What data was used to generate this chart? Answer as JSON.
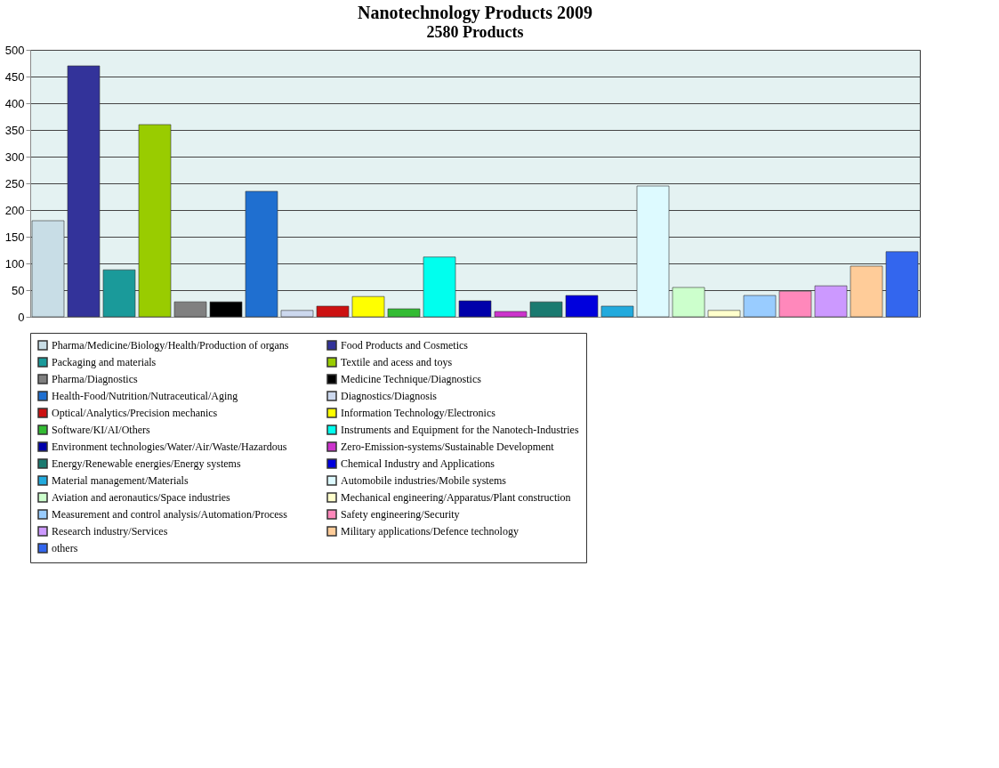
{
  "chart_data": {
    "type": "bar",
    "title": "Nanotechnology Products 2009",
    "subtitle": "2580 Products",
    "categories": [
      null,
      null,
      null,
      null,
      null,
      null,
      null,
      null,
      null,
      null,
      null,
      null,
      null,
      null,
      null,
      null,
      null,
      null,
      null,
      null,
      null,
      null,
      null,
      null,
      null
    ],
    "series": [
      {
        "name": "Pharma/Medicine/Biology/Health/Production of organs",
        "color": "#c8dde6",
        "values": [
          180,
          null,
          null,
          null,
          null,
          null,
          null,
          null,
          null,
          null,
          null,
          null,
          null,
          null,
          null,
          null,
          null,
          null,
          null,
          null,
          null,
          null,
          null,
          null,
          null
        ]
      },
      {
        "name": "Food Products and Cosmetics",
        "color": "#33339a",
        "values": [
          null,
          470,
          null,
          null,
          null,
          null,
          null,
          null,
          null,
          null,
          null,
          null,
          null,
          null,
          null,
          null,
          null,
          null,
          null,
          null,
          null,
          null,
          null,
          null,
          null
        ]
      },
      {
        "name": "Packaging and materials",
        "color": "#1a9a9a",
        "values": [
          null,
          null,
          88,
          null,
          null,
          null,
          null,
          null,
          null,
          null,
          null,
          null,
          null,
          null,
          null,
          null,
          null,
          null,
          null,
          null,
          null,
          null,
          null,
          null,
          null
        ]
      },
      {
        "name": "Textile and acess and toys",
        "color": "#99cc00",
        "values": [
          null,
          null,
          null,
          360,
          null,
          null,
          null,
          null,
          null,
          null,
          null,
          null,
          null,
          null,
          null,
          null,
          null,
          null,
          null,
          null,
          null,
          null,
          null,
          null,
          null
        ]
      },
      {
        "name": "Pharma/Diagnostics",
        "color": "#808080",
        "values": [
          null,
          null,
          null,
          null,
          28,
          null,
          null,
          null,
          null,
          null,
          null,
          null,
          null,
          null,
          null,
          null,
          null,
          null,
          null,
          null,
          null,
          null,
          null,
          null,
          null
        ]
      },
      {
        "name": "Medicine Technique/Diagnostics",
        "color": "#000000",
        "values": [
          null,
          null,
          null,
          null,
          null,
          28,
          null,
          null,
          null,
          null,
          null,
          null,
          null,
          null,
          null,
          null,
          null,
          null,
          null,
          null,
          null,
          null,
          null,
          null,
          null
        ]
      },
      {
        "name": "Health-Food/Nutrition/Nutraceutical/Aging",
        "color": "#1f6fd0",
        "values": [
          null,
          null,
          null,
          null,
          null,
          null,
          235,
          null,
          null,
          null,
          null,
          null,
          null,
          null,
          null,
          null,
          null,
          null,
          null,
          null,
          null,
          null,
          null,
          null,
          null
        ]
      },
      {
        "name": "Diagnostics/Diagnosis",
        "color": "#ccd8ee",
        "values": [
          null,
          null,
          null,
          null,
          null,
          null,
          null,
          12,
          null,
          null,
          null,
          null,
          null,
          null,
          null,
          null,
          null,
          null,
          null,
          null,
          null,
          null,
          null,
          null,
          null
        ]
      },
      {
        "name": "Optical/Analytics/Precision mechanics",
        "color": "#cc1111",
        "values": [
          null,
          null,
          null,
          null,
          null,
          null,
          null,
          null,
          20,
          null,
          null,
          null,
          null,
          null,
          null,
          null,
          null,
          null,
          null,
          null,
          null,
          null,
          null,
          null,
          null
        ]
      },
      {
        "name": "Information Technology/Electronics",
        "color": "#ffff00",
        "values": [
          null,
          null,
          null,
          null,
          null,
          null,
          null,
          null,
          null,
          38,
          null,
          null,
          null,
          null,
          null,
          null,
          null,
          null,
          null,
          null,
          null,
          null,
          null,
          null,
          null
        ]
      },
      {
        "name": "Software/KI/AI/Others",
        "color": "#33bb33",
        "values": [
          null,
          null,
          null,
          null,
          null,
          null,
          null,
          null,
          null,
          null,
          15,
          null,
          null,
          null,
          null,
          null,
          null,
          null,
          null,
          null,
          null,
          null,
          null,
          null,
          null
        ]
      },
      {
        "name": "Instruments and Equipment for the Nanotech-Industries",
        "color": "#00ffee",
        "values": [
          null,
          null,
          null,
          null,
          null,
          null,
          null,
          null,
          null,
          null,
          null,
          112,
          null,
          null,
          null,
          null,
          null,
          null,
          null,
          null,
          null,
          null,
          null,
          null,
          null
        ]
      },
      {
        "name": "Environment technologies/Water/Air/Waste/Hazardous",
        "color": "#0000aa",
        "values": [
          null,
          null,
          null,
          null,
          null,
          null,
          null,
          null,
          null,
          null,
          null,
          null,
          30,
          null,
          null,
          null,
          null,
          null,
          null,
          null,
          null,
          null,
          null,
          null,
          null
        ]
      },
      {
        "name": "Zero-Emission-systems/Sustainable Development",
        "color": "#cc33cc",
        "values": [
          null,
          null,
          null,
          null,
          null,
          null,
          null,
          null,
          null,
          null,
          null,
          null,
          null,
          10,
          null,
          null,
          null,
          null,
          null,
          null,
          null,
          null,
          null,
          null,
          null
        ]
      },
      {
        "name": "Energy/Renewable energies/Energy systems",
        "color": "#1a7a70",
        "values": [
          null,
          null,
          null,
          null,
          null,
          null,
          null,
          null,
          null,
          null,
          null,
          null,
          null,
          null,
          28,
          null,
          null,
          null,
          null,
          null,
          null,
          null,
          null,
          null,
          null
        ]
      },
      {
        "name": "Chemical Industry and Applications",
        "color": "#0000dd",
        "values": [
          null,
          null,
          null,
          null,
          null,
          null,
          null,
          null,
          null,
          null,
          null,
          null,
          null,
          null,
          null,
          40,
          null,
          null,
          null,
          null,
          null,
          null,
          null,
          null,
          null
        ]
      },
      {
        "name": "Material management/Materials",
        "color": "#22aadd",
        "values": [
          null,
          null,
          null,
          null,
          null,
          null,
          null,
          null,
          null,
          null,
          null,
          null,
          null,
          null,
          null,
          null,
          20,
          null,
          null,
          null,
          null,
          null,
          null,
          null,
          null
        ]
      },
      {
        "name": "Automobile industries/Mobile systems",
        "color": "#ddfaff",
        "values": [
          null,
          null,
          null,
          null,
          null,
          null,
          null,
          null,
          null,
          null,
          null,
          null,
          null,
          null,
          null,
          null,
          null,
          245,
          null,
          null,
          null,
          null,
          null,
          null,
          null
        ]
      },
      {
        "name": "Aviation and aeronautics/Space industries",
        "color": "#ccffcc",
        "values": [
          null,
          null,
          null,
          null,
          null,
          null,
          null,
          null,
          null,
          null,
          null,
          null,
          null,
          null,
          null,
          null,
          null,
          null,
          55,
          null,
          null,
          null,
          null,
          null,
          null
        ]
      },
      {
        "name": "Mechanical engineering/Apparatus/Plant construction",
        "color": "#ffffcc",
        "values": [
          null,
          null,
          null,
          null,
          null,
          null,
          null,
          null,
          null,
          null,
          null,
          null,
          null,
          null,
          null,
          null,
          null,
          null,
          null,
          12,
          null,
          null,
          null,
          null,
          null
        ]
      },
      {
        "name": "Measurement and control analysis/Automation/Process",
        "color": "#99ccff",
        "values": [
          null,
          null,
          null,
          null,
          null,
          null,
          null,
          null,
          null,
          null,
          null,
          null,
          null,
          null,
          null,
          null,
          null,
          null,
          null,
          null,
          40,
          null,
          null,
          null,
          null
        ]
      },
      {
        "name": "Safety engineering/Security",
        "color": "#ff88bb",
        "values": [
          null,
          null,
          null,
          null,
          null,
          null,
          null,
          null,
          null,
          null,
          null,
          null,
          null,
          null,
          null,
          null,
          null,
          null,
          null,
          null,
          null,
          48,
          null,
          null,
          null
        ]
      },
      {
        "name": "Research industry/Services",
        "color": "#cc99ff",
        "values": [
          null,
          null,
          null,
          null,
          null,
          null,
          null,
          null,
          null,
          null,
          null,
          null,
          null,
          null,
          null,
          null,
          null,
          null,
          null,
          null,
          null,
          null,
          58,
          null,
          null
        ]
      },
      {
        "name": "Military applications/Defence technology",
        "color": "#ffcc99",
        "values": [
          null,
          null,
          null,
          null,
          null,
          null,
          null,
          null,
          null,
          null,
          null,
          null,
          null,
          null,
          null,
          null,
          null,
          null,
          null,
          null,
          null,
          null,
          null,
          95,
          null
        ]
      },
      {
        "name": "others",
        "color": "#3366ee",
        "values": [
          null,
          null,
          null,
          null,
          null,
          null,
          null,
          null,
          null,
          null,
          null,
          null,
          null,
          null,
          null,
          null,
          null,
          null,
          null,
          null,
          null,
          null,
          null,
          null,
          122
        ]
      }
    ],
    "ylim": [
      0,
      500
    ],
    "yticks": [
      0,
      50,
      100,
      150,
      200,
      250,
      300,
      350,
      400,
      450,
      500
    ],
    "grid": "y",
    "legend": "bottom",
    "tick_labels": "y"
  }
}
